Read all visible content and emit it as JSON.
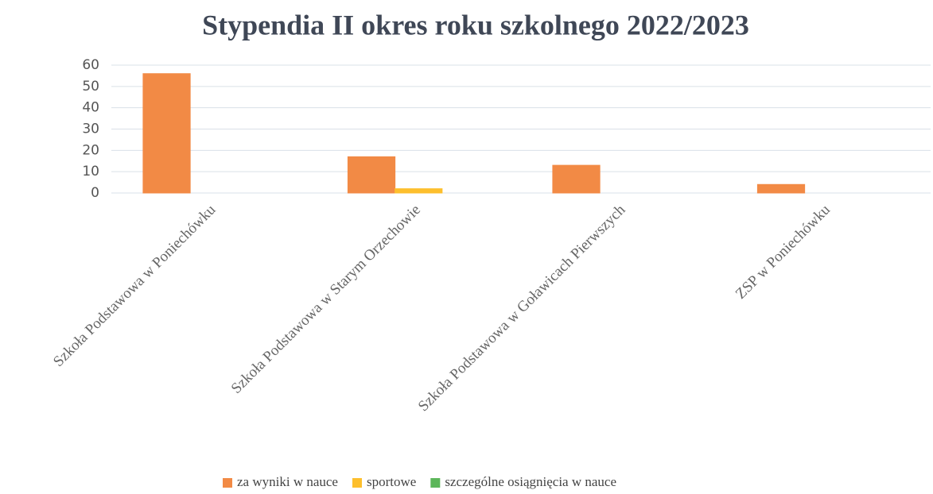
{
  "chart_data": {
    "type": "bar",
    "title": "Stypendia II okres roku szkolnego 2022/2023",
    "categories": [
      "Szkoła Podstawowa w Poniechówku",
      "Szkoła Podstawowa w Starym Orzechowie",
      "Szkoła Podstawowa w Goławicach Pierwszych",
      "ZSP w Poniechówku"
    ],
    "series": [
      {
        "name": "za wyniki w nauce",
        "color": "#f28a45",
        "values": [
          56,
          17,
          13,
          4
        ]
      },
      {
        "name": "sportowe",
        "color": "#fdbf2d",
        "values": [
          0,
          2,
          0,
          0
        ]
      },
      {
        "name": "szczególne osiągnięcia w nauce",
        "color": "#5cb65a",
        "values": [
          0,
          0,
          0,
          0
        ]
      }
    ],
    "ylim": [
      0,
      60
    ],
    "yticks": [
      0,
      10,
      20,
      30,
      40,
      50,
      60
    ],
    "grid": true,
    "legend": "bottom"
  }
}
